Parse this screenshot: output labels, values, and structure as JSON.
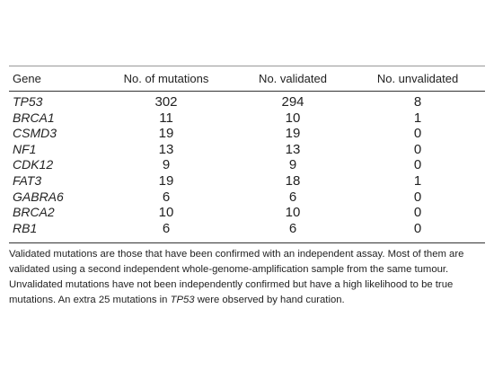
{
  "table": {
    "header": [
      "Gene",
      "No. of mutations",
      "No. validated",
      "No. unvalidated"
    ],
    "rows": [
      [
        "TP53",
        302,
        294,
        8
      ],
      [
        "BRCA1",
        11,
        10,
        1
      ],
      [
        "CSMD3",
        19,
        19,
        0
      ],
      [
        "NF1",
        13,
        13,
        0
      ],
      [
        "CDK12",
        9,
        9,
        0
      ],
      [
        "FAT3",
        19,
        18,
        1
      ],
      [
        "GABRA6",
        6,
        6,
        0
      ],
      [
        "BRCA2",
        10,
        10,
        0
      ],
      [
        "RB1",
        6,
        6,
        0
      ]
    ]
  },
  "footnote": [
    "Validated mutations are those that have been confirmed with an independent assay. Most of them are validated using a second independent whole-genome-amplification sample from the same tumour. Unvalidated mutations have not been independently confirmed but have a high likelihood to be true mutations. An extra 25 mutations in ",
    "TP53",
    " were observed by hand curation."
  ]
}
